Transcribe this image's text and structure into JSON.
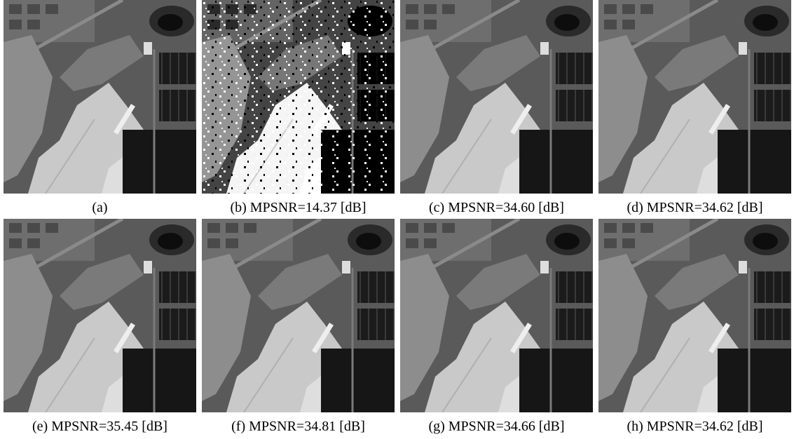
{
  "panels": [
    {
      "caption": "(a)"
    },
    {
      "caption": "(b) MPSNR=14.37 [dB]"
    },
    {
      "caption": "(c) MPSNR=34.60 [dB]"
    },
    {
      "caption": "(d) MPSNR=34.62 [dB]"
    },
    {
      "caption": "(e) MPSNR=35.45 [dB]"
    },
    {
      "caption": "(f) MPSNR=34.81 [dB]"
    },
    {
      "caption": "(g) MPSNR=34.66 [dB]"
    },
    {
      "caption": "(h) MPSNR=34.62 [dB]"
    }
  ]
}
